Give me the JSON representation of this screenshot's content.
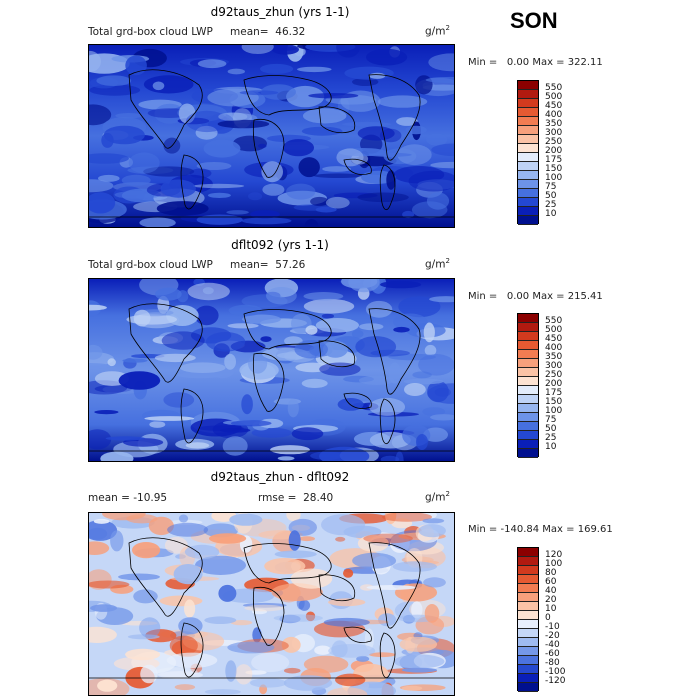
{
  "season": "SON",
  "chart_data": [
    {
      "type": "heatmap",
      "title": "d92taus_zhun (yrs 1-1)",
      "left_label": "Total grd-box cloud LWP",
      "mean_label": "mean=",
      "mean_value": "46.32",
      "units_base": "g/m",
      "units_exp": "2",
      "min_label": "Min =",
      "min_value": "0.00",
      "max_label": "Max =",
      "max_value": "322.11",
      "colorbar_levels": [
        "550",
        "500",
        "450",
        "400",
        "350",
        "300",
        "250",
        "200",
        "175",
        "150",
        "100",
        "75",
        "50",
        "25",
        "10"
      ],
      "colorbar_colors": [
        "#8b0000",
        "#b11a10",
        "#d23a1e",
        "#e65a32",
        "#f27c52",
        "#f7a07c",
        "#fbc3a6",
        "#fde3d2",
        "#e3ecfb",
        "#bfd3f6",
        "#97b6f0",
        "#6d93e8",
        "#4670df",
        "#2448d2",
        "#0a1fb8",
        "#00108f"
      ]
    },
    {
      "type": "heatmap",
      "title": "dflt092 (yrs 1-1)",
      "left_label": "Total grd-box cloud LWP",
      "mean_label": "mean=",
      "mean_value": "57.26",
      "units_base": "g/m",
      "units_exp": "2",
      "min_label": "Min =",
      "min_value": "0.00",
      "max_label": "Max =",
      "max_value": "215.41",
      "colorbar_levels": [
        "550",
        "500",
        "450",
        "400",
        "350",
        "300",
        "250",
        "200",
        "175",
        "150",
        "100",
        "75",
        "50",
        "25",
        "10"
      ],
      "colorbar_colors": [
        "#8b0000",
        "#b11a10",
        "#d23a1e",
        "#e65a32",
        "#f27c52",
        "#f7a07c",
        "#fbc3a6",
        "#fde3d2",
        "#e3ecfb",
        "#bfd3f6",
        "#97b6f0",
        "#6d93e8",
        "#4670df",
        "#2448d2",
        "#0a1fb8",
        "#00108f"
      ]
    },
    {
      "type": "heatmap",
      "title": "d92taus_zhun - dflt092",
      "left_label": "mean = -10.95",
      "rmse_label": "rmse =",
      "rmse_value": "28.40",
      "units_base": "g/m",
      "units_exp": "2",
      "min_label": "Min =",
      "min_value": "-140.84",
      "max_label": "Max =",
      "max_value": "169.61",
      "colorbar_levels": [
        "120",
        "100",
        "80",
        "60",
        "40",
        "20",
        "10",
        "0",
        "-10",
        "-20",
        "-40",
        "-60",
        "-80",
        "-100",
        "-120"
      ],
      "colorbar_colors": [
        "#8b0000",
        "#b11a10",
        "#d23a1e",
        "#e65a32",
        "#f27c52",
        "#f7a07c",
        "#fbc3a6",
        "#fde3d2",
        "#e8effc",
        "#c5d7f7",
        "#9fbbf1",
        "#7598e9",
        "#4c73df",
        "#2649cf",
        "#0a1fb8",
        "#00108f"
      ]
    }
  ]
}
